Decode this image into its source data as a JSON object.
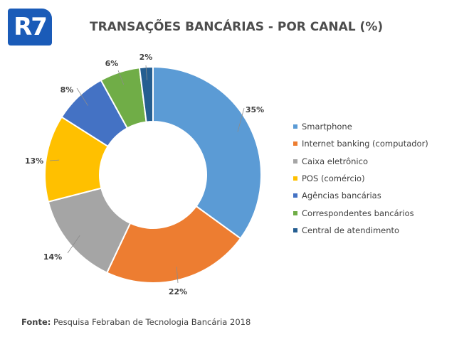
{
  "logo": {
    "text": "R7"
  },
  "chart_data": {
    "type": "pie",
    "donut": true,
    "title": "TRANSAÇÕES BANCÁRIAS - POR CANAL (%)",
    "legend_position": "right",
    "series": [
      {
        "name": "Smartphone",
        "value": 35,
        "label": "35%",
        "color": "#5b9bd5"
      },
      {
        "name": "Internet banking (computador)",
        "value": 22,
        "label": "22%",
        "color": "#ed7d31"
      },
      {
        "name": "Caixa eletrônico",
        "value": 14,
        "label": "14%",
        "color": "#a5a5a5"
      },
      {
        "name": "POS (comércio)",
        "value": 13,
        "label": "13%",
        "color": "#ffc000"
      },
      {
        "name": "Agências bancárias",
        "value": 8,
        "label": "8%",
        "color": "#4472c4"
      },
      {
        "name": "Correspondentes bancários",
        "value": 6,
        "label": "6%",
        "color": "#70ad47"
      },
      {
        "name": "Central de atendimento",
        "value": 2,
        "label": "2%",
        "color": "#255e91"
      }
    ]
  },
  "source": {
    "label": "Fonte:",
    "text": " Pesquisa Febraban de Tecnologia Bancária 2018"
  }
}
